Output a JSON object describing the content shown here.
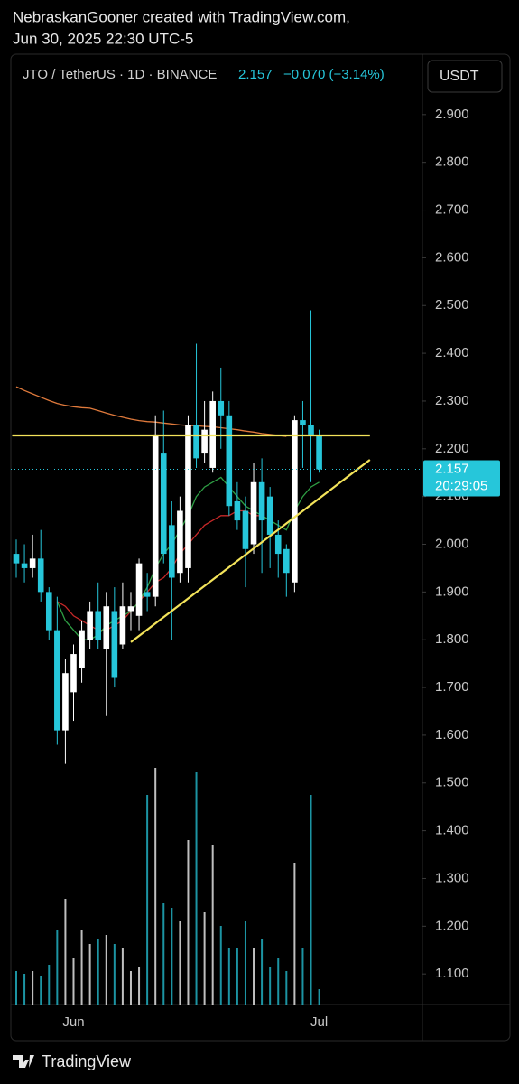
{
  "header": {
    "line1": "NebraskanGooner created with TradingView.com,",
    "line2": "Jun 30, 2025 22:30 UTC-5"
  },
  "footer": {
    "brand": "TradingView"
  },
  "chart_data": {
    "type": "candlestick",
    "title": "JTO / TetherUS · 1D · BINANCE",
    "last": "2.157",
    "change": "−0.070 (−3.14%)",
    "currency": "USDT",
    "up_color": "#ffffff",
    "down_color": "#26c6da",
    "categories": [
      null,
      null,
      null,
      null,
      null,
      null,
      null,
      "Jun",
      null,
      null,
      null,
      null,
      null,
      null,
      null,
      null,
      null,
      null,
      null,
      null,
      null,
      null,
      null,
      null,
      null,
      null,
      null,
      null,
      null,
      null,
      null,
      null,
      null,
      null,
      null,
      null,
      null,
      "Jul"
    ],
    "open": [
      1.98,
      1.96,
      1.95,
      1.97,
      1.9,
      1.82,
      1.61,
      1.69,
      1.74,
      1.8,
      1.86,
      1.78,
      1.86,
      1.79,
      1.86,
      1.85,
      1.9,
      1.89,
      2.19,
      2.04,
      1.94,
      1.95,
      2.25,
      2.19,
      2.16,
      2.3,
      2.27,
      2.09,
      2.07,
      2.0,
      2.13,
      2.1,
      2.02,
      1.99,
      1.92,
      2.26,
      2.25,
      2.227
    ],
    "high": [
      2.01,
      2.0,
      2.02,
      2.03,
      1.91,
      1.89,
      1.76,
      1.79,
      1.84,
      1.88,
      1.92,
      1.9,
      1.91,
      1.92,
      1.9,
      1.97,
      1.94,
      2.27,
      2.28,
      2.09,
      2.1,
      2.27,
      2.42,
      2.3,
      2.32,
      2.37,
      2.3,
      2.13,
      2.1,
      2.17,
      2.18,
      2.12,
      2.05,
      2.0,
      2.27,
      2.3,
      2.49,
      2.24
    ],
    "low": [
      1.93,
      1.92,
      1.93,
      1.88,
      1.8,
      1.58,
      1.54,
      1.63,
      1.71,
      1.78,
      1.78,
      1.64,
      1.7,
      1.78,
      1.82,
      1.82,
      1.86,
      1.87,
      1.96,
      1.8,
      1.92,
      1.92,
      2.16,
      2.17,
      2.15,
      2.2,
      2.06,
      2.03,
      1.91,
      1.98,
      1.94,
      1.95,
      1.93,
      1.89,
      1.9,
      2.16,
      2.13,
      2.15
    ],
    "close": [
      1.96,
      1.95,
      1.97,
      1.9,
      1.82,
      1.61,
      1.73,
      1.77,
      1.82,
      1.86,
      1.8,
      1.87,
      1.72,
      1.87,
      1.87,
      1.96,
      1.89,
      2.23,
      1.98,
      1.93,
      2.07,
      2.25,
      2.18,
      2.24,
      2.3,
      2.27,
      2.08,
      2.05,
      1.99,
      2.13,
      2.05,
      2.02,
      1.98,
      1.94,
      2.26,
      2.25,
      2.23,
      2.157
    ],
    "volume": [
      37,
      34,
      37,
      32,
      44,
      82,
      117,
      52,
      82,
      67,
      72,
      77,
      67,
      62,
      37,
      42,
      232,
      262,
      112,
      107,
      92,
      182,
      257,
      102,
      177,
      87,
      62,
      62,
      92,
      62,
      72,
      42,
      52,
      37,
      157,
      62,
      232,
      17
    ],
    "ma_lines": [
      {
        "color": "#e07a3c",
        "values": [
          2.33,
          2.322,
          2.315,
          2.308,
          2.301,
          2.295,
          2.291,
          2.288,
          2.286,
          2.285,
          2.28,
          2.275,
          2.27,
          2.266,
          2.262,
          2.259,
          2.257,
          2.256,
          2.254,
          2.252,
          2.25,
          2.249,
          2.248,
          2.247,
          2.246,
          2.244,
          2.242,
          2.24,
          2.237,
          2.235,
          2.232,
          2.23,
          2.228,
          2.226,
          null,
          null,
          null,
          null
        ]
      },
      {
        "color": "#c62828",
        "values": [
          null,
          null,
          null,
          null,
          null,
          1.88,
          1.87,
          1.85,
          1.84,
          1.83,
          1.82,
          1.82,
          1.83,
          1.84,
          1.86,
          1.88,
          1.9,
          1.92,
          1.93,
          1.95,
          1.98,
          2.0,
          2.02,
          2.04,
          2.05,
          2.06,
          2.06,
          2.07,
          2.07,
          2.06,
          2.06,
          2.05,
          null,
          null,
          null,
          null,
          null,
          null
        ]
      },
      {
        "color": "#2e9e44",
        "values": [
          null,
          null,
          null,
          null,
          null,
          1.88,
          1.84,
          1.82,
          1.8,
          1.8,
          1.81,
          1.83,
          1.84,
          1.85,
          1.86,
          1.88,
          1.91,
          1.95,
          1.98,
          2.0,
          2.03,
          2.06,
          2.1,
          2.12,
          2.13,
          2.14,
          2.12,
          2.1,
          2.08,
          2.07,
          2.06,
          2.05,
          2.04,
          2.03,
          2.07,
          2.1,
          2.12,
          2.13
        ]
      }
    ],
    "drawings": [
      {
        "color": "#f3e35a",
        "x": [
          -0.5,
          43.2
        ],
        "y": [
          2.228,
          2.228
        ]
      },
      {
        "color": "#f3e35a",
        "x": [
          14,
          43.2
        ],
        "y": [
          1.795,
          2.177
        ]
      }
    ],
    "price_label": {
      "value": 2.157,
      "label": "2.157"
    },
    "countdown": "20:29:05",
    "ylim": [
      1.036,
      3.017
    ],
    "yticks": [
      {
        "value": 1.1,
        "label": "1.100"
      },
      {
        "value": 1.2,
        "label": "1.200"
      },
      {
        "value": 1.3,
        "label": "1.300"
      },
      {
        "value": 1.4,
        "label": "1.400"
      },
      {
        "value": 1.5,
        "label": "1.500"
      },
      {
        "value": 1.6,
        "label": "1.600"
      },
      {
        "value": 1.7,
        "label": "1.700"
      },
      {
        "value": 1.8,
        "label": "1.800"
      },
      {
        "value": 1.9,
        "label": "1.900"
      },
      {
        "value": 2.0,
        "label": "2.000"
      },
      {
        "value": 2.1,
        "label": "2.100"
      },
      {
        "value": 2.2,
        "label": "2.200"
      },
      {
        "value": 2.3,
        "label": "2.300"
      },
      {
        "value": 2.4,
        "label": "2.400"
      },
      {
        "value": 2.5,
        "label": "2.500"
      },
      {
        "value": 2.6,
        "label": "2.600"
      },
      {
        "value": 2.7,
        "label": "2.700"
      },
      {
        "value": 2.8,
        "label": "2.800"
      },
      {
        "value": 2.9,
        "label": "2.900"
      }
    ]
  }
}
